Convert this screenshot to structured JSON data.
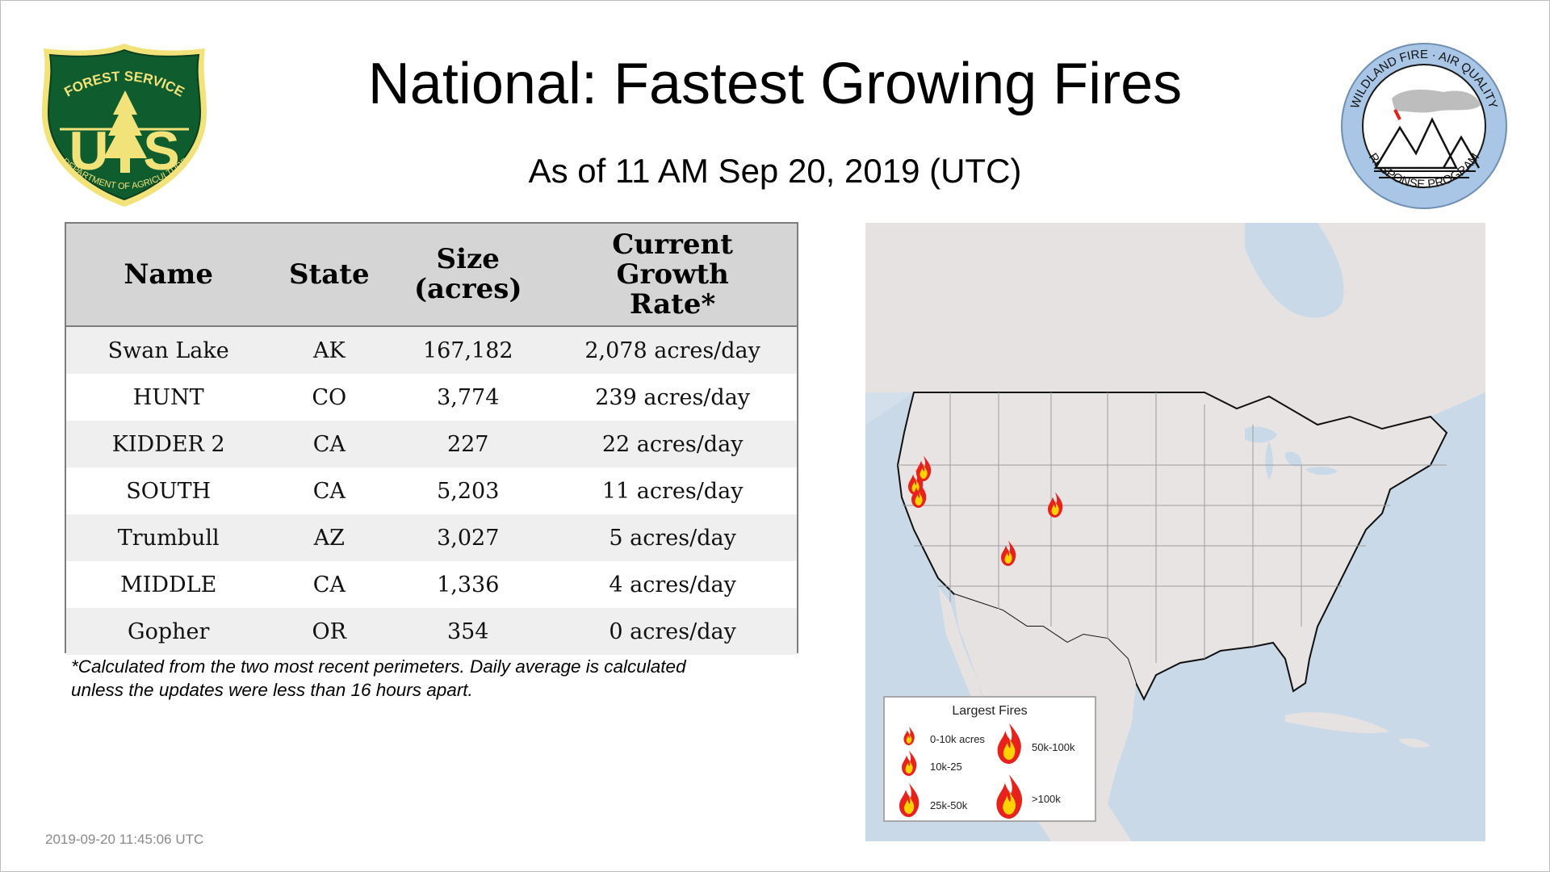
{
  "page": {
    "title": "National: Fastest Growing Fires",
    "subtitle": "As of 11 AM Sep 20, 2019 (UTC)",
    "timestamp": "2019-09-20 11:45:06 UTC",
    "footnote": "*Calculated from the two most recent perimeters. Daily average is calculated\n unless the updates were less than 16 hours apart."
  },
  "logos": {
    "forest_service": {
      "top_text": "FOREST SERVICE",
      "letters": "U S",
      "bottom_text": "DEPARTMENT OF AGRICULTURE"
    },
    "wildland": {
      "top_text": "WILDLAND FIRE · AIR QUALITY",
      "bottom_text": "RESPONSE PROGRAM"
    }
  },
  "table": {
    "headers": [
      "Name",
      "State",
      "Size\n(acres)",
      "Current\nGrowth\nRate*"
    ],
    "rows": [
      [
        "Swan Lake",
        "AK",
        "167,182",
        "2,078 acres/day"
      ],
      [
        "HUNT",
        "CO",
        "3,774",
        "239 acres/day"
      ],
      [
        "KIDDER 2",
        "CA",
        "227",
        "22 acres/day"
      ],
      [
        "SOUTH",
        "CA",
        "5,203",
        "11 acres/day"
      ],
      [
        "Trumbull",
        "AZ",
        "3,027",
        "5 acres/day"
      ],
      [
        "MIDDLE",
        "CA",
        "1,336",
        "4 acres/day"
      ],
      [
        "Gopher",
        "OR",
        "354",
        "0 acres/day"
      ]
    ]
  },
  "legend": {
    "title": "Largest Fires",
    "items": [
      "0-10k acres",
      "10k-25",
      "25k-50k",
      "50k-100k",
      ">100k"
    ]
  },
  "colors": {
    "fire_outer": "#e8221b",
    "fire_inner": "#ffd200",
    "land": "#e9e4e4",
    "water": "#c9d9e8"
  }
}
